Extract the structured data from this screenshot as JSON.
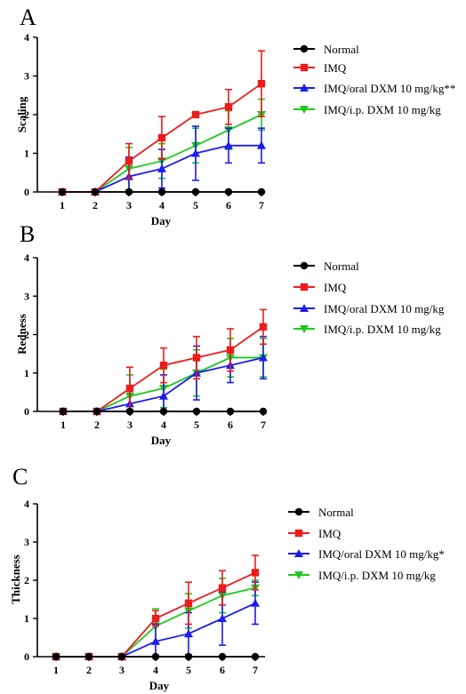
{
  "chart_data": [
    {
      "panel": "A",
      "type": "line",
      "xlabel": "Day",
      "ylabel": "Scaling",
      "x": [
        1,
        2,
        3,
        4,
        5,
        6,
        7
      ],
      "ylim": [
        0,
        4
      ],
      "yticks": [
        0,
        1,
        2,
        3,
        4
      ],
      "series": [
        {
          "name": "Normal",
          "color": "#000000",
          "marker": "circle",
          "values": [
            0,
            0,
            0,
            0,
            0,
            0,
            0
          ],
          "err": [
            0,
            0,
            0,
            0,
            0,
            0,
            0
          ]
        },
        {
          "name": "IMQ",
          "color": "#ee1c1c",
          "marker": "square",
          "values": [
            0,
            0,
            0.8,
            1.4,
            2.0,
            2.2,
            2.8
          ],
          "err": [
            0,
            0,
            0.45,
            0.55,
            0,
            0.45,
            0.85
          ]
        },
        {
          "name": "IMQ/oral DXM 10 mg/kg**",
          "color": "#1c1cee",
          "marker": "triangle-up",
          "values": [
            0,
            0,
            0.4,
            0.6,
            1.0,
            1.2,
            1.2
          ],
          "err": [
            0,
            0,
            0.5,
            0.5,
            0.7,
            0.45,
            0.45
          ]
        },
        {
          "name": "IMQ/i.p. DXM 10 mg/kg",
          "color": "#1ec81e",
          "marker": "triangle-down",
          "values": [
            0,
            0,
            0.6,
            0.8,
            1.2,
            1.6,
            2.0
          ],
          "err": [
            0,
            0,
            0.55,
            0.45,
            0.45,
            0.5,
            0.4
          ]
        }
      ]
    },
    {
      "panel": "B",
      "type": "line",
      "xlabel": "Day",
      "ylabel": "Redness",
      "x": [
        1,
        2,
        3,
        4,
        5,
        6,
        7
      ],
      "ylim": [
        0,
        4
      ],
      "yticks": [
        0,
        1,
        2,
        3,
        4
      ],
      "series": [
        {
          "name": "Normal",
          "color": "#000000",
          "marker": "circle",
          "values": [
            0,
            0,
            0,
            0,
            0,
            0,
            0
          ],
          "err": [
            0,
            0,
            0,
            0,
            0,
            0,
            0
          ]
        },
        {
          "name": "IMQ",
          "color": "#ee1c1c",
          "marker": "square",
          "values": [
            0,
            0,
            0.6,
            1.2,
            1.4,
            1.6,
            2.2
          ],
          "err": [
            0,
            0,
            0.55,
            0.45,
            0.55,
            0.55,
            0.45
          ]
        },
        {
          "name": "IMQ/oral DXM 10 mg/kg",
          "color": "#1c1cee",
          "marker": "triangle-up",
          "values": [
            0,
            0,
            0.2,
            0.4,
            1.0,
            1.2,
            1.4
          ],
          "err": [
            0,
            0,
            0.4,
            0.55,
            0.7,
            0.45,
            0.55
          ]
        },
        {
          "name": "IMQ/i.p. DXM 10 mg/kg",
          "color": "#1ec81e",
          "marker": "triangle-down",
          "values": [
            0,
            0,
            0.4,
            0.6,
            1.0,
            1.4,
            1.4
          ],
          "err": [
            0,
            0,
            0.55,
            0.5,
            0.6,
            0.5,
            0.5
          ]
        }
      ]
    },
    {
      "panel": "C",
      "type": "line",
      "xlabel": "Day",
      "ylabel": "Thickness",
      "x": [
        1,
        2,
        3,
        4,
        5,
        6,
        7
      ],
      "ylim": [
        0,
        4
      ],
      "yticks": [
        0,
        1,
        2,
        3,
        4
      ],
      "series": [
        {
          "name": "Normal",
          "color": "#000000",
          "marker": "circle",
          "values": [
            0,
            0,
            0,
            0,
            0,
            0,
            0
          ],
          "err": [
            0,
            0,
            0,
            0,
            0,
            0,
            0
          ]
        },
        {
          "name": "IMQ",
          "color": "#ee1c1c",
          "marker": "square",
          "values": [
            0,
            0,
            0,
            1.0,
            1.4,
            1.8,
            2.2
          ],
          "err": [
            0,
            0,
            0,
            0.2,
            0.55,
            0.45,
            0.45
          ]
        },
        {
          "name": "IMQ/oral DXM 10 mg/kg*",
          "color": "#1c1cee",
          "marker": "triangle-up",
          "values": [
            0,
            0,
            0,
            0.4,
            0.6,
            1.0,
            1.4
          ],
          "err": [
            0,
            0,
            0,
            0.45,
            0.55,
            0.7,
            0.55
          ]
        },
        {
          "name": "IMQ/i.p. DXM 10 mg/kg",
          "color": "#1ec81e",
          "marker": "triangle-down",
          "values": [
            0,
            0,
            0,
            0.8,
            1.2,
            1.6,
            1.8
          ],
          "err": [
            0,
            0,
            0,
            0.45,
            0.45,
            0.45,
            0.2
          ]
        }
      ]
    }
  ]
}
